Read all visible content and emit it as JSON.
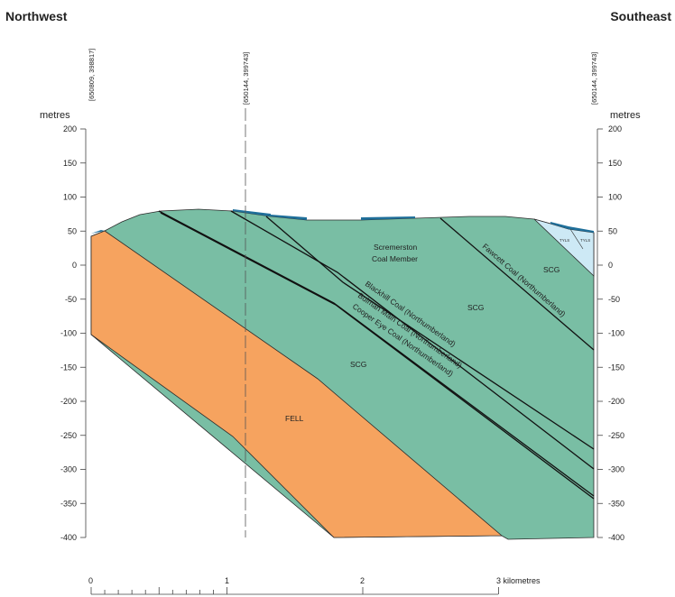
{
  "header": {
    "left_direction": "Northwest",
    "right_direction": "Southeast"
  },
  "coordinates": {
    "left": "[650809, 398817]",
    "bend": "[650144, 399743]",
    "right": "[650144, 399743]"
  },
  "axis": {
    "unit_label": "metres",
    "ticks": [
      "200",
      "150",
      "100",
      "50",
      "0",
      "-50",
      "-100",
      "-150",
      "-200",
      "-250",
      "-300",
      "-350",
      "-400"
    ]
  },
  "units": {
    "fell": "FELL",
    "scg": "SCG",
    "scremerston_line1": "Scremerston",
    "scremerston_line2": "Coal Member",
    "tyls": "TYLS"
  },
  "coals": {
    "fawcett": "Fawcett Coal  (Northumberland)",
    "blackhill": "Blackhill Coal (Northumberland)",
    "bulman": "Bulman Main Coal (Northumberland)",
    "cooper": "Cooper Eye Coal (Northumberland)"
  },
  "scale_bar": {
    "labels": [
      "0",
      "1",
      "2",
      "3 kilometres"
    ]
  },
  "colors": {
    "fell": "#f6a35f",
    "scg": "#79bea4",
    "tyls": "#cde9f5",
    "surface_water": "#1f6f9a"
  }
}
